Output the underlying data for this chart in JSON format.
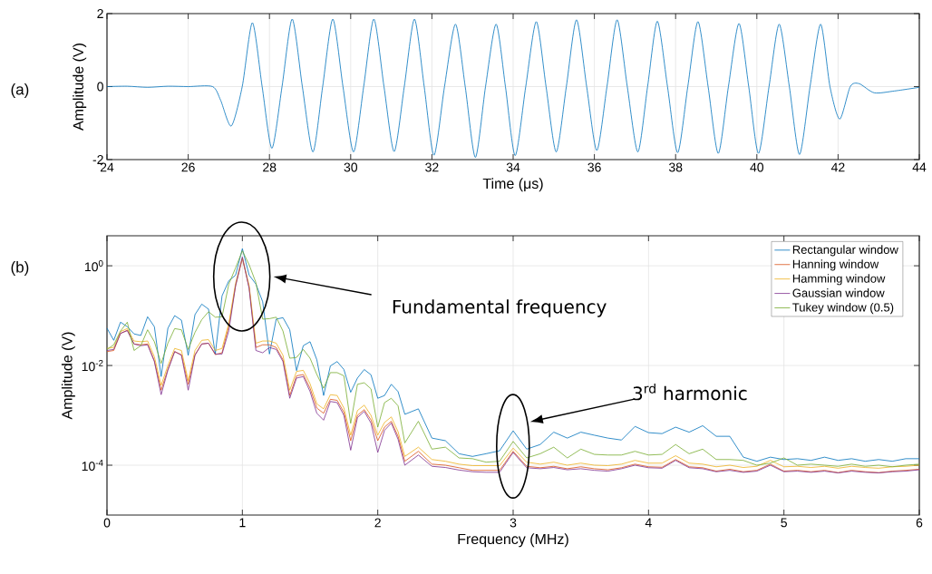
{
  "chart_data": [
    {
      "type": "line",
      "xlabel": "Time (μs)",
      "ylabel": "Amplitude (V)",
      "xlim": [
        24,
        44
      ],
      "ylim": [
        -2,
        2
      ],
      "xticks": [
        24,
        26,
        28,
        30,
        32,
        34,
        36,
        38,
        40,
        42,
        44
      ],
      "yticks": [
        -2,
        0,
        2
      ],
      "grid": true,
      "annotations": [
        "(a)"
      ],
      "x": [
        24,
        24.5,
        25,
        25.5,
        26,
        26.6,
        26.8,
        27.06,
        27.33,
        27.58,
        27.82,
        28.06,
        28.31,
        28.56,
        28.81,
        29.07,
        29.31,
        29.56,
        29.81,
        30.07,
        30.32,
        30.57,
        30.82,
        31.07,
        31.32,
        31.57,
        31.81,
        32.05,
        32.31,
        32.58,
        32.82,
        33.07,
        33.32,
        33.58,
        33.81,
        34.05,
        34.31,
        34.57,
        34.81,
        35.06,
        35.31,
        35.56,
        35.81,
        36.06,
        36.31,
        36.56,
        36.81,
        37.07,
        37.31,
        37.55,
        37.8,
        38.05,
        38.3,
        38.55,
        38.8,
        39.05,
        39.3,
        39.56,
        39.8,
        40.04,
        40.3,
        40.55,
        40.8,
        41.05,
        41.31,
        41.57,
        41.8,
        42.04,
        42.3,
        42.52,
        42.89,
        43.39,
        44
      ],
      "series": [
        {
          "color": "#0072bd",
          "values": [
            0,
            0.01,
            -0.02,
            0.01,
            0,
            0,
            -0.38,
            -1.08,
            0,
            1.75,
            0,
            -1.69,
            0,
            1.85,
            0,
            -1.79,
            0,
            1.85,
            0,
            -1.79,
            0,
            1.85,
            0,
            -1.78,
            0,
            1.85,
            0,
            -1.88,
            0,
            1.71,
            0,
            -1.94,
            0,
            1.71,
            0,
            -1.89,
            0,
            1.78,
            0,
            -1.79,
            0,
            1.83,
            0,
            -1.75,
            0,
            1.83,
            0,
            -1.79,
            0,
            1.79,
            0,
            -1.81,
            0,
            1.78,
            0,
            -1.83,
            0,
            1.73,
            0,
            -1.83,
            0,
            1.71,
            0,
            -1.86,
            0,
            1.71,
            0,
            -0.89,
            0,
            0.08,
            -0.17,
            -0.12,
            -0.02
          ]
        }
      ]
    },
    {
      "type": "line",
      "xlabel": "Frequency (MHz)",
      "ylabel": "Amplitude (V)",
      "log": "y",
      "xlim": [
        0,
        6
      ],
      "ylim": [
        1e-05,
        4
      ],
      "xticks": [
        0,
        1,
        2,
        3,
        4,
        5,
        6
      ],
      "yticks": [
        {
          "value": 1,
          "label": "10$^{0}$"
        },
        {
          "value": 0.01,
          "label": "10$^{-2}$"
        },
        {
          "value": 0.0001,
          "label": "10$^{-4}$"
        }
      ],
      "grid": true,
      "legend": "top right",
      "annotations": [
        "(b)",
        "Fundamental frequency",
        "3$^{rd}$ harmonic"
      ],
      "x": [
        0,
        0.05,
        0.1,
        0.15,
        0.2,
        0.25,
        0.3,
        0.35,
        0.4,
        0.45,
        0.5,
        0.55,
        0.6,
        0.65,
        0.7,
        0.75,
        0.8,
        0.85,
        0.9,
        0.95,
        1.0,
        1.05,
        1.1,
        1.15,
        1.2,
        1.25,
        1.3,
        1.35,
        1.4,
        1.45,
        1.5,
        1.55,
        1.6,
        1.65,
        1.7,
        1.75,
        1.8,
        1.85,
        1.9,
        1.95,
        2.0,
        2.05,
        2.1,
        2.15,
        2.2,
        2.3,
        2.4,
        2.5,
        2.6,
        2.7,
        2.8,
        2.9,
        3.0,
        3.1,
        3.2,
        3.3,
        3.4,
        3.5,
        3.6,
        3.7,
        3.8,
        3.9,
        4.0,
        4.1,
        4.2,
        4.3,
        4.4,
        4.5,
        4.6,
        4.7,
        4.8,
        4.9,
        5.0,
        5.1,
        5.2,
        5.3,
        5.4,
        5.5,
        5.6,
        5.7,
        5.8,
        5.9,
        6.0
      ],
      "series": [
        {
          "name": "Rectangular window",
          "color": "#0072bd",
          "values": [
            0.056,
            0.032,
            0.074,
            0.06,
            0.043,
            0.04,
            0.095,
            0.06,
            0.006,
            0.056,
            0.1,
            0.081,
            0.016,
            0.105,
            0.17,
            0.135,
            0.017,
            0.25,
            0.5,
            0.65,
            2.2,
            0.65,
            0.43,
            0.19,
            0.017,
            0.085,
            0.091,
            0.052,
            0.0079,
            0.025,
            0.03,
            0.013,
            0.0025,
            0.0098,
            0.012,
            0.0083,
            0.0029,
            0.0056,
            0.0083,
            0.0065,
            0.0022,
            0.0025,
            0.0042,
            0.003,
            0.00105,
            0.00135,
            0.00035,
            0.00031,
            0.00017,
            0.00015,
            0.00017,
            0.000195,
            0.00049,
            0.00021,
            0.00026,
            0.00046,
            0.00035,
            0.00046,
            0.0004,
            0.00035,
            0.00032,
            0.0006,
            0.00045,
            0.00043,
            0.00058,
            0.00046,
            0.00062,
            0.00038,
            0.00038,
            0.000145,
            0.00012,
            0.000145,
            0.00013,
            0.000135,
            0.000125,
            0.000145,
            0.000125,
            0.000135,
            0.00012,
            0.00013,
            0.00012,
            0.000135,
            0.000135
          ]
        },
        {
          "name": "Hanning window",
          "color": "#d95319",
          "values": [
            0.019,
            0.02,
            0.044,
            0.051,
            0.027,
            0.026,
            0.027,
            0.0125,
            0.0032,
            0.0085,
            0.019,
            0.0165,
            0.0042,
            0.0165,
            0.027,
            0.028,
            0.0165,
            0.018,
            0.063,
            0.4,
            1.4,
            0.37,
            0.023,
            0.026,
            0.026,
            0.023,
            0.013,
            0.0025,
            0.0062,
            0.0066,
            0.0035,
            0.0014,
            0.0011,
            0.0021,
            0.002,
            0.00115,
            0.00031,
            0.001,
            0.0013,
            0.00081,
            0.00031,
            0.00058,
            0.00076,
            0.00038,
            0.00012,
            0.00019,
            0.000105,
            0.0001,
            8.9e-05,
            7.9e-05,
            7.9e-05,
            7.9e-05,
            0.00019,
            9.5e-05,
            8.9e-05,
            9.5e-05,
            8.5e-05,
            9.3e-05,
            8.5e-05,
            8.1e-05,
            8.9e-05,
            0.000105,
            9.3e-05,
            9.1e-05,
            0.00013,
            9.3e-05,
            8.9e-05,
            7.6e-05,
            8.3e-05,
            7.4e-05,
            7.9e-05,
            0.000105,
            7.6e-05,
            7.9e-05,
            7.4e-05,
            7.9e-05,
            7.1e-05,
            7.9e-05,
            7.4e-05,
            7.1e-05,
            7.6e-05,
            7.9e-05,
            8.3e-05
          ]
        },
        {
          "name": "Hamming window",
          "color": "#edb120",
          "values": [
            0.022,
            0.023,
            0.048,
            0.055,
            0.031,
            0.03,
            0.031,
            0.015,
            0.004,
            0.01,
            0.022,
            0.02,
            0.005,
            0.02,
            0.032,
            0.033,
            0.02,
            0.022,
            0.07,
            0.45,
            1.45,
            0.4,
            0.028,
            0.031,
            0.031,
            0.028,
            0.016,
            0.0032,
            0.0076,
            0.008,
            0.0043,
            0.0017,
            0.00135,
            0.0026,
            0.0025,
            0.0014,
            0.0004,
            0.00125,
            0.0016,
            0.001,
            0.0004,
            0.00072,
            0.00093,
            0.00047,
            0.00015,
            0.00023,
            0.00013,
            0.00012,
            0.000105,
            9.8e-05,
            9.8e-05,
            9.8e-05,
            0.00022,
            0.000115,
            0.000105,
            0.000115,
            0.0001,
            0.00011,
            0.0001,
            9.8e-05,
            0.000105,
            0.000125,
            0.00011,
            0.00011,
            0.000155,
            0.00011,
            0.000105,
            9.3e-05,
            0.0001,
            9e-05,
            9.5e-05,
            0.000125,
            9.3e-05,
            9.5e-05,
            9e-05,
            9.5e-05,
            8.7e-05,
            9.5e-05,
            9e-05,
            8.7e-05,
            9.3e-05,
            9.5e-05,
            0.0001
          ]
        },
        {
          "name": "Gaussian window",
          "color": "#7e2f8e",
          "values": [
            0.02,
            0.021,
            0.044,
            0.05,
            0.027,
            0.025,
            0.026,
            0.012,
            0.0026,
            0.008,
            0.019,
            0.016,
            0.0032,
            0.016,
            0.027,
            0.028,
            0.017,
            0.017,
            0.05,
            0.4,
            1.5,
            0.35,
            0.02,
            0.018,
            0.023,
            0.021,
            0.012,
            0.0022,
            0.0056,
            0.006,
            0.003,
            0.0011,
            0.0008,
            0.0019,
            0.0018,
            0.001,
            0.0002,
            0.0009,
            0.0012,
            0.0007,
            0.00018,
            0.0005,
            0.0007,
            0.00033,
            0.0001,
            0.00016,
            9.5e-05,
            9e-05,
            8e-05,
            7.4e-05,
            7.2e-05,
            7.2e-05,
            0.00018,
            8.9e-05,
            8.5e-05,
            9e-05,
            8.1e-05,
            8.5e-05,
            7.9e-05,
            7.6e-05,
            8.5e-05,
            0.0001,
            8.9e-05,
            8.7e-05,
            0.000125,
            8.9e-05,
            8.5e-05,
            7.4e-05,
            7.9e-05,
            7.2e-05,
            7.6e-05,
            0.0001,
            7.4e-05,
            7.6e-05,
            7.2e-05,
            7.6e-05,
            7e-05,
            7.6e-05,
            7.2e-05,
            7e-05,
            7.4e-05,
            7.6e-05,
            8.1e-05
          ]
        },
        {
          "name": "Tukey window (0.5)",
          "color": "#77ac30",
          "values": [
            0.021,
            0.026,
            0.049,
            0.074,
            0.02,
            0.025,
            0.052,
            0.03,
            0.011,
            0.028,
            0.055,
            0.052,
            0.021,
            0.046,
            0.083,
            0.12,
            0.093,
            0.095,
            0.43,
            0.91,
            2.0,
            1.05,
            0.46,
            0.085,
            0.087,
            0.093,
            0.049,
            0.014,
            0.0145,
            0.021,
            0.014,
            0.0066,
            0.0035,
            0.0072,
            0.0072,
            0.0062,
            0.00069,
            0.0042,
            0.0045,
            0.0034,
            0.00058,
            0.0018,
            0.0022,
            0.00155,
            0.00028,
            0.00076,
            0.00021,
            0.00023,
            0.00014,
            0.000135,
            0.000115,
            0.00012,
            0.0003,
            0.00014,
            0.00017,
            0.00023,
            0.00014,
            0.00021,
            0.000165,
            0.00016,
            0.00016,
            0.00019,
            0.00016,
            0.000165,
            0.00026,
            0.00017,
            0.00021,
            0.00013,
            0.00013,
            0.000125,
            0.0001,
            0.00011,
            0.00014,
            0.0001,
            0.000105,
            0.0001,
            9.5e-05,
            0.000105,
            9.5e-05,
            0.0001,
            9.3e-05,
            0.0001,
            0.000105
          ]
        }
      ]
    }
  ]
}
